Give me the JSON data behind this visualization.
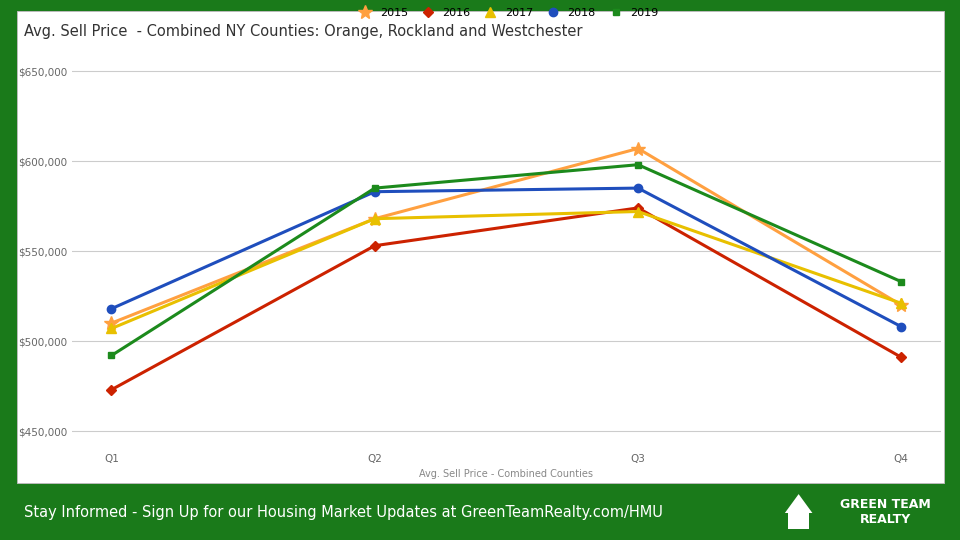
{
  "title": "Avg. Sell Price  - Combined NY Counties: Orange, Rockland and Westchester",
  "xlabel": "Avg. Sell Price - Combined Counties",
  "quarters": [
    "Q1",
    "Q2",
    "Q3",
    "Q4"
  ],
  "series_order": [
    "2015",
    "2016",
    "2017",
    "2018",
    "2019"
  ],
  "series": {
    "2015": {
      "values": [
        510000,
        568000,
        607000,
        520000
      ],
      "color": "#FFA040",
      "marker": "*",
      "markersize": 10,
      "linewidth": 2.2
    },
    "2016": {
      "values": [
        473000,
        553000,
        574000,
        491000
      ],
      "color": "#CC2200",
      "marker": "D",
      "markersize": 5,
      "linewidth": 2.2
    },
    "2017": {
      "values": [
        507000,
        568000,
        572000,
        521000
      ],
      "color": "#E8C000",
      "marker": "^",
      "markersize": 7,
      "linewidth": 2.2
    },
    "2018": {
      "values": [
        518000,
        583000,
        585000,
        508000
      ],
      "color": "#1F4EBD",
      "marker": "o",
      "markersize": 6,
      "linewidth": 2.2
    },
    "2019": {
      "values": [
        492000,
        585000,
        598000,
        533000
      ],
      "color": "#1C8A1C",
      "marker": "s",
      "markersize": 5,
      "linewidth": 2.2
    }
  },
  "ylim": [
    442000,
    658000
  ],
  "yticks": [
    450000,
    500000,
    550000,
    600000,
    650000
  ],
  "outer_background": "#1A7A1A",
  "chart_bg": "#FFFFFF",
  "grid_color": "#CCCCCC",
  "title_fontsize": 10.5,
  "tick_fontsize": 7.5,
  "xlabel_fontsize": 7,
  "legend_fontsize": 8,
  "footer_bg": "#1A7A1A",
  "footer_text_pre": "Stay Informed - Sign Up for our Housing Market Updates at ",
  "footer_link": "GreenTeamRealty.com/HMU",
  "logo_text": "GREEN TEAM\nREALTY",
  "logo_bg": "#2A9A2A"
}
